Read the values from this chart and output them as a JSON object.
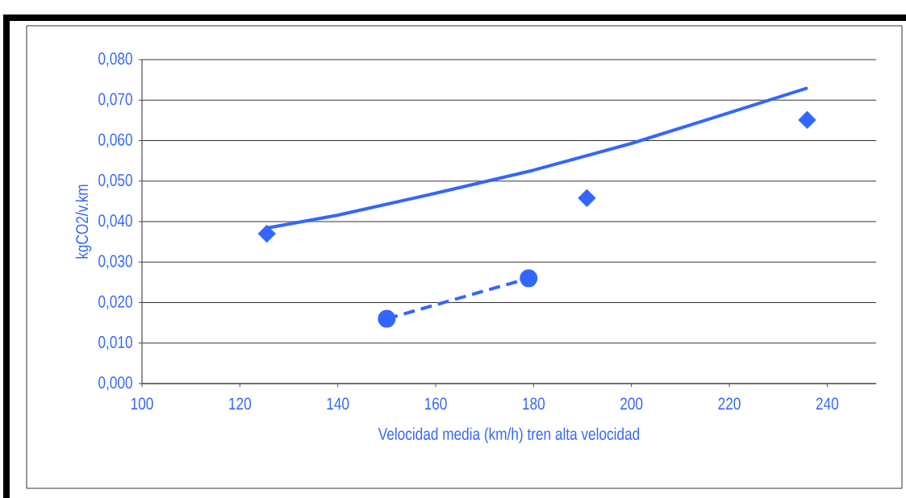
{
  "chart_data": {
    "type": "scatter",
    "xlabel": "Velocidad media (km/h) tren alta velocidad",
    "ylabel": "kgCO2/v.km",
    "xlim": [
      100,
      250
    ],
    "xticks": [
      100,
      120,
      140,
      160,
      180,
      200,
      220,
      240
    ],
    "ylim": [
      0,
      0.08
    ],
    "yticks": [
      {
        "value": 0,
        "label": "0,000"
      },
      {
        "value": 0.01,
        "label": "0,010"
      },
      {
        "value": 0.02,
        "label": "0,020"
      },
      {
        "value": 0.03,
        "label": "0,030"
      },
      {
        "value": 0.04,
        "label": "0,040"
      },
      {
        "value": 0.05,
        "label": "0,050"
      },
      {
        "value": 0.06,
        "label": "0,060"
      },
      {
        "value": 0.07,
        "label": "0,070"
      },
      {
        "value": 0.08,
        "label": "0,080"
      }
    ],
    "grid": "y",
    "series": [
      {
        "type": "line",
        "color": "#3366ff",
        "marker": "none",
        "line_style": "solid",
        "x": [
          125.5,
          140,
          160,
          180,
          200,
          220,
          236
        ],
        "values": [
          0.0384,
          0.0416,
          0.047,
          0.0527,
          0.0593,
          0.0669,
          0.073
        ]
      },
      {
        "color": "#3366ff",
        "marker": "diamond",
        "x": [
          125.5,
          190.9,
          235.9
        ],
        "values": [
          0.037,
          0.0458,
          0.0651
        ]
      },
      {
        "type": "line",
        "color": "#3366ff",
        "marker": "circle",
        "line_style": "dashed",
        "x": [
          150,
          179
        ],
        "values": [
          0.016,
          0.026
        ]
      }
    ]
  }
}
